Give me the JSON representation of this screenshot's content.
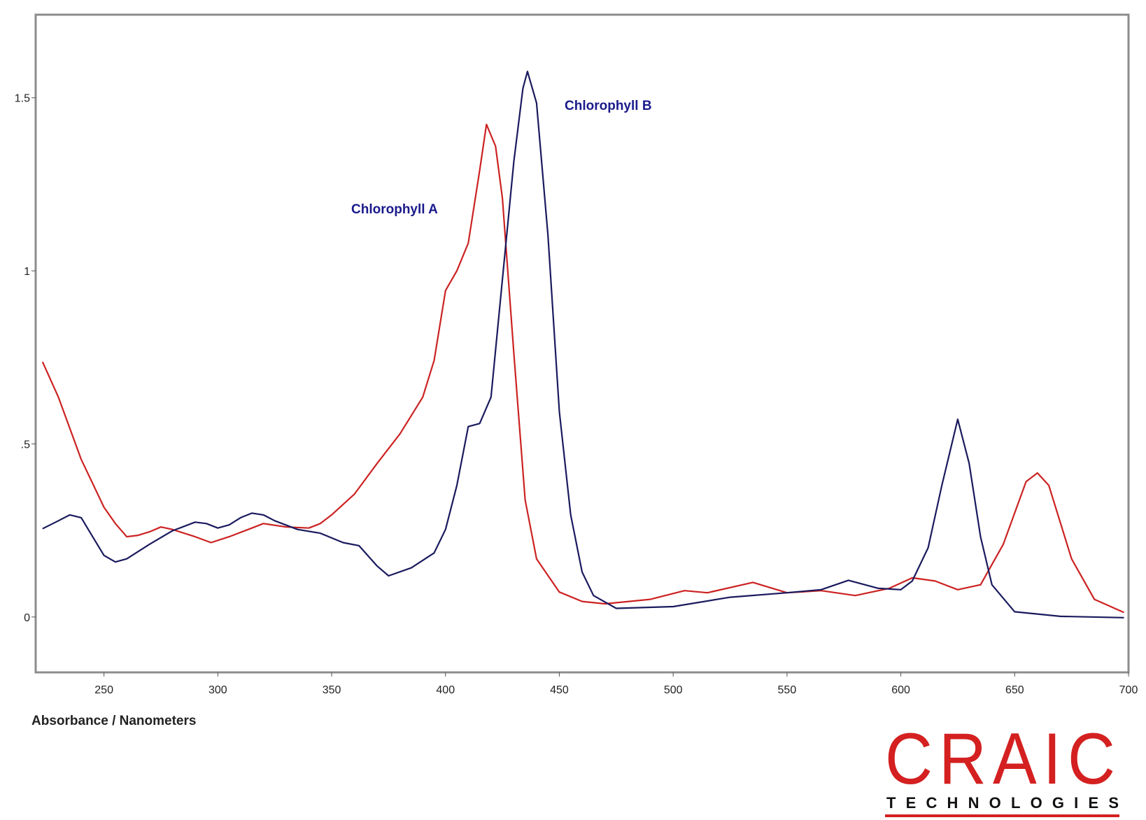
{
  "chart_data": {
    "type": "line",
    "x_label": "Absorbance / Nanometers",
    "xlim": [
      220,
      700
    ],
    "xticks": [
      250,
      300,
      350,
      400,
      450,
      500,
      550,
      600,
      650,
      700
    ],
    "ylim": [
      -0.16,
      1.74
    ],
    "yticks": [
      0,
      {
        "value": 0.5,
        "label": ".5"
      },
      1,
      1.5
    ],
    "series": [
      {
        "name": "Chlorophyll A",
        "color": "#cc2222",
        "x": [
          223,
          230,
          240,
          250,
          255,
          260,
          265,
          270,
          275,
          280,
          290,
          297,
          305,
          315,
          320,
          330,
          340,
          345,
          350,
          360,
          370,
          380,
          390,
          395,
          400,
          405,
          410,
          415,
          418,
          422,
          425,
          430,
          435,
          440,
          450,
          460,
          470,
          490,
          505,
          515,
          535,
          550,
          565,
          580,
          595,
          605,
          615,
          625,
          635,
          645,
          655,
          660,
          665,
          675,
          685,
          698
        ],
        "values": [
          0.737,
          0.635,
          0.455,
          0.317,
          0.27,
          0.232,
          0.236,
          0.246,
          0.26,
          0.253,
          0.232,
          0.215,
          0.232,
          0.257,
          0.27,
          0.26,
          0.257,
          0.27,
          0.295,
          0.355,
          0.444,
          0.529,
          0.635,
          0.741,
          0.943,
          1.0,
          1.08,
          1.29,
          1.423,
          1.36,
          1.21,
          0.763,
          0.338,
          0.168,
          0.072,
          0.045,
          0.038,
          0.051,
          0.076,
          0.07,
          0.1,
          0.07,
          0.076,
          0.062,
          0.083,
          0.113,
          0.104,
          0.079,
          0.093,
          0.21,
          0.391,
          0.416,
          0.38,
          0.168,
          0.051,
          0.013
        ]
      },
      {
        "name": "Chlorophyll B",
        "color": "#1a1a5e",
        "x": [
          223,
          230,
          235,
          240,
          245,
          250,
          255,
          260,
          270,
          280,
          290,
          295,
          300,
          305,
          310,
          315,
          320,
          325,
          335,
          345,
          355,
          362,
          370,
          375,
          385,
          395,
          400,
          405,
          410,
          415,
          420,
          425,
          430,
          434,
          436,
          440,
          445,
          450,
          455,
          460,
          465,
          475,
          500,
          525,
          550,
          565,
          577,
          590,
          600,
          605,
          612,
          618,
          625,
          630,
          635,
          640,
          650,
          670,
          698
        ],
        "values": [
          0.255,
          0.278,
          0.295,
          0.287,
          0.232,
          0.178,
          0.159,
          0.168,
          0.21,
          0.249,
          0.274,
          0.27,
          0.257,
          0.266,
          0.287,
          0.3,
          0.295,
          0.278,
          0.253,
          0.242,
          0.215,
          0.206,
          0.147,
          0.119,
          0.142,
          0.185,
          0.253,
          0.38,
          0.55,
          0.559,
          0.635,
          0.975,
          1.315,
          1.527,
          1.576,
          1.485,
          1.103,
          0.593,
          0.295,
          0.13,
          0.062,
          0.025,
          0.03,
          0.057,
          0.07,
          0.079,
          0.106,
          0.083,
          0.079,
          0.104,
          0.2,
          0.38,
          0.571,
          0.444,
          0.232,
          0.093,
          0.015,
          0.002,
          -0.002
        ]
      }
    ]
  },
  "logo": {
    "name": "CRAIC",
    "tagline": "TECHNOLOGIES"
  }
}
